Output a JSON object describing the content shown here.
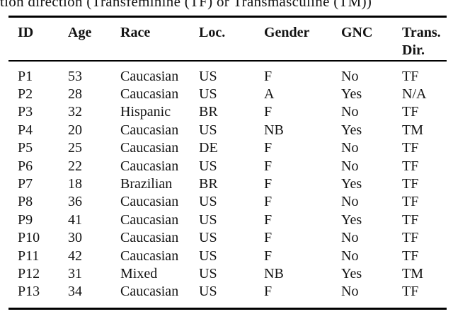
{
  "caption": {
    "visible_text": "tion direction (Transfeminine (TF) or Transmasculine (TM))"
  },
  "table": {
    "headers": [
      "ID",
      "Age",
      "Race",
      "Loc.",
      "Gender",
      "GNC",
      "Trans.\nDir."
    ],
    "rows": [
      [
        "P1",
        "53",
        "Caucasian",
        "US",
        "F",
        "No",
        "TF"
      ],
      [
        "P2",
        "28",
        "Caucasian",
        "US",
        "A",
        "Yes",
        "N/A"
      ],
      [
        "P3",
        "32",
        "Hispanic",
        "BR",
        "F",
        "No",
        "TF"
      ],
      [
        "P4",
        "20",
        "Caucasian",
        "US",
        "NB",
        "Yes",
        "TM"
      ],
      [
        "P5",
        "25",
        "Caucasian",
        "DE",
        "F",
        "No",
        "TF"
      ],
      [
        "P6",
        "22",
        "Caucasian",
        "US",
        "F",
        "No",
        "TF"
      ],
      [
        "P7",
        "18",
        "Brazilian",
        "BR",
        "F",
        "Yes",
        "TF"
      ],
      [
        "P8",
        "36",
        "Caucasian",
        "US",
        "F",
        "No",
        "TF"
      ],
      [
        "P9",
        "41",
        "Caucasian",
        "US",
        "F",
        "Yes",
        "TF"
      ],
      [
        "P10",
        "30",
        "Caucasian",
        "US",
        "F",
        "No",
        "TF"
      ],
      [
        "P11",
        "42",
        "Caucasian",
        "US",
        "F",
        "No",
        "TF"
      ],
      [
        "P12",
        "31",
        "Mixed",
        "US",
        "NB",
        "Yes",
        "TM"
      ],
      [
        "P13",
        "34",
        "Caucasian",
        "US",
        "F",
        "No",
        "TF"
      ]
    ]
  },
  "colors": {
    "background": "#ffffff",
    "text": "#131313",
    "rule": "#000000"
  }
}
